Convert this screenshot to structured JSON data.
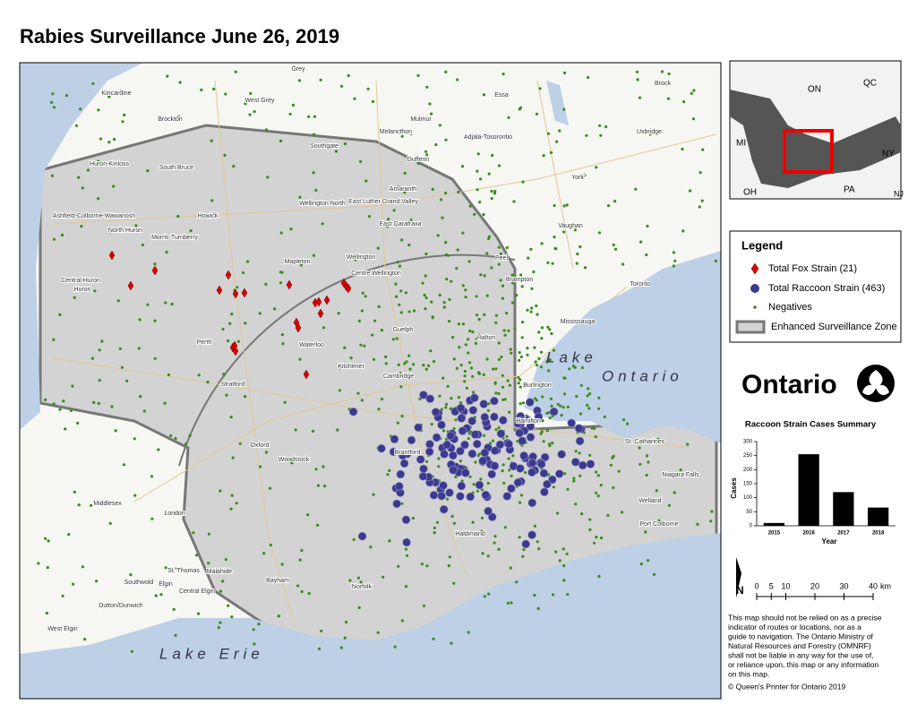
{
  "title": "Rabies Surveillance June 26, 2019",
  "map": {
    "places": [
      "Grey",
      "Kincardine",
      "West Grey",
      "Brockton",
      "Essa",
      "Brock",
      "Melancthon",
      "Mulmur",
      "Adjala-Tosorontio",
      "Uxbridge",
      "Southgate",
      "Huron-Kinloss",
      "South Bruce",
      "Dufferin",
      "York",
      "Wellington North",
      "East Luther Grand Valley",
      "Amaranth",
      "Vaughan",
      "Ashfield-Colborne-Wawanosh",
      "Howick",
      "North Huron",
      "Morris-Turnberry",
      "East Garafraxa",
      "Peel",
      "Brampton",
      "Toronto",
      "Mapleton",
      "Wellington",
      "Centre Wellington",
      "Central Huron",
      "Huron",
      "Mississauga",
      "Guelph",
      "Halton",
      "Perth",
      "Waterloo",
      "Kitchener",
      "Cambridge",
      "Burlington",
      "Stratford",
      "Hamilton",
      "Oxford",
      "Woodstock",
      "Brantford",
      "St. Catharines",
      "Niagara Falls",
      "Middlesex",
      "London",
      "Haldimand",
      "Welland",
      "Port Colborne",
      "Norfolk",
      "St. Thomas",
      "Elgin",
      "Central Elgin",
      "Dutton/Dunwich",
      "West Elgin",
      "Southwold",
      "Malahide",
      "Bayham"
    ],
    "lakes": [
      "Lake",
      "Ontario",
      "Lake Erie"
    ]
  },
  "inset": {
    "labels": [
      "ON",
      "QC",
      "MI",
      "NY",
      "PA",
      "OH",
      "NJ"
    ]
  },
  "legend": {
    "title": "Legend",
    "items": [
      "Total Fox Strain (21)",
      "Total Raccoon Strain (463)",
      "Negatives",
      "Enhanced Surveillance Zone"
    ]
  },
  "logo": "Ontario",
  "chart_data": {
    "type": "bar",
    "title": "Raccoon Strain Cases Summary",
    "categories": [
      "2015",
      "2016",
      "2017",
      "2018"
    ],
    "values": [
      10,
      255,
      120,
      65
    ],
    "color": "#000000",
    "x_label": "Year",
    "y_label": "Cases",
    "ylim": [
      0,
      300
    ],
    "yticks": [
      0,
      50,
      100,
      150,
      200,
      250,
      300
    ]
  },
  "scale": {
    "ticks": [
      0,
      5,
      10,
      20,
      30,
      40
    ],
    "unit": "km"
  },
  "disclaimer": [
    "This map should not be relied on as a precise",
    "indicator of routes or locations, nor as a",
    "guide to navigation. The Ontario Ministry of",
    "Natural Resources and Forestry (OMNRF)",
    "shall not be liable in any way for the use of,",
    "or reliance upon, this map or any information",
    "on this map."
  ],
  "copyright": "© Queen's Printer for Ontario 2019"
}
